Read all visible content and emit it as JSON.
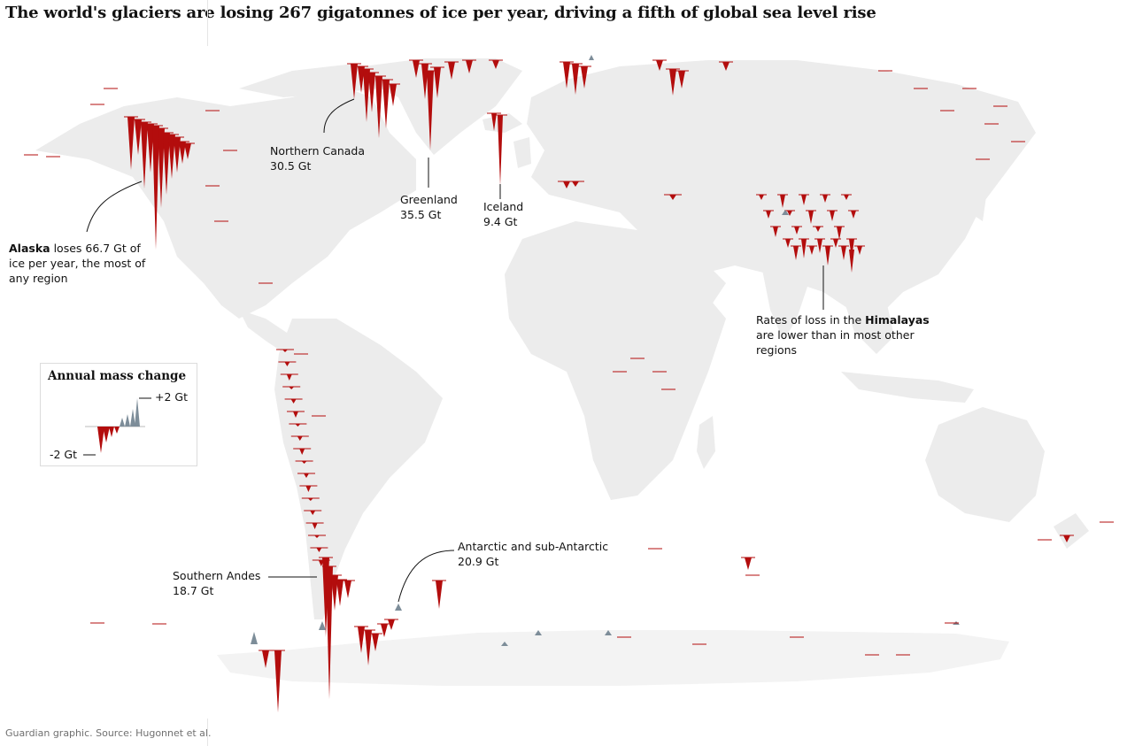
{
  "title": "The world's glaciers are losing 267 gigatonnes of ice per year, driving a fifth of global sea level rise",
  "source": "Guardian graphic. Source: Hugonnet et al.",
  "colors": {
    "loss": "#b30d0d",
    "gain": "#7d8d99",
    "land": "#ececec",
    "antarctica": "#f3f3f3"
  },
  "annotations": {
    "alaska": {
      "bold": "Alaska",
      "rest1": " loses 66.7 Gt of",
      "line2": "ice per year, the most of",
      "line3": "any region"
    },
    "northern_canada": {
      "name": "Northern Canada",
      "value": "30.5 Gt"
    },
    "greenland": {
      "name": "Greenland",
      "value": "35.5 Gt"
    },
    "iceland": {
      "name": "Iceland",
      "value": "9.4 Gt"
    },
    "himalayas": {
      "line1a": "Rates of loss in the ",
      "line1b": "Himalayas",
      "line2": "are lower than in most other",
      "line3": "regions"
    },
    "southern_andes": {
      "name": "Southern Andes",
      "value": "18.7 Gt"
    },
    "antarctic": {
      "name": "Antarctic and sub-Antarctic",
      "value": "20.9 Gt"
    }
  },
  "legend": {
    "title": "Annual mass change",
    "max_label": "+2 Gt",
    "min_label": "-2 Gt"
  },
  "chart_data": {
    "type": "map",
    "unit": "Gt per year",
    "regions": [
      {
        "name": "Alaska",
        "value": -66.7
      },
      {
        "name": "Greenland",
        "value": -35.5
      },
      {
        "name": "Northern Canada",
        "value": -30.5
      },
      {
        "name": "Antarctic and sub-Antarctic",
        "value": -20.9
      },
      {
        "name": "Southern Andes",
        "value": -18.7
      },
      {
        "name": "Iceland",
        "value": -9.4
      }
    ]
  }
}
